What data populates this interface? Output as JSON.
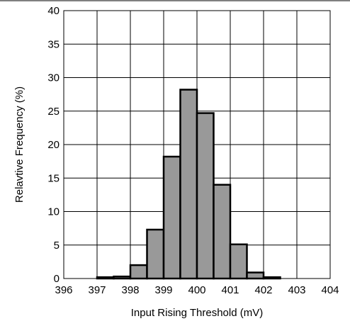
{
  "chart_data": {
    "type": "bar",
    "title": "",
    "xlabel": "Input Rising Threshold (mV)",
    "ylabel": "Relavtive Frequency (%)",
    "xlim": [
      396,
      404
    ],
    "ylim": [
      0,
      40
    ],
    "x_ticks": [
      "396",
      "397",
      "398",
      "399",
      "400",
      "401",
      "402",
      "403",
      "404"
    ],
    "y_ticks": [
      "0",
      "5",
      "10",
      "15",
      "20",
      "25",
      "30",
      "35",
      "40"
    ],
    "grid": true,
    "bin_width": 0.5,
    "bins": [
      {
        "start": 397.0,
        "end": 397.5,
        "value": 0.2
      },
      {
        "start": 397.5,
        "end": 398.0,
        "value": 0.3
      },
      {
        "start": 398.0,
        "end": 398.5,
        "value": 2.0
      },
      {
        "start": 398.5,
        "end": 399.0,
        "value": 7.3
      },
      {
        "start": 399.0,
        "end": 399.5,
        "value": 18.2
      },
      {
        "start": 399.5,
        "end": 400.0,
        "value": 28.2
      },
      {
        "start": 400.0,
        "end": 400.5,
        "value": 24.7
      },
      {
        "start": 400.5,
        "end": 401.0,
        "value": 14.0
      },
      {
        "start": 401.0,
        "end": 401.5,
        "value": 5.1
      },
      {
        "start": 401.5,
        "end": 402.0,
        "value": 0.9
      },
      {
        "start": 402.0,
        "end": 402.5,
        "value": 0.2
      }
    ],
    "colors": {
      "bar_fill": "#999999",
      "bar_stroke": "#000000",
      "grid": "#000000"
    }
  }
}
